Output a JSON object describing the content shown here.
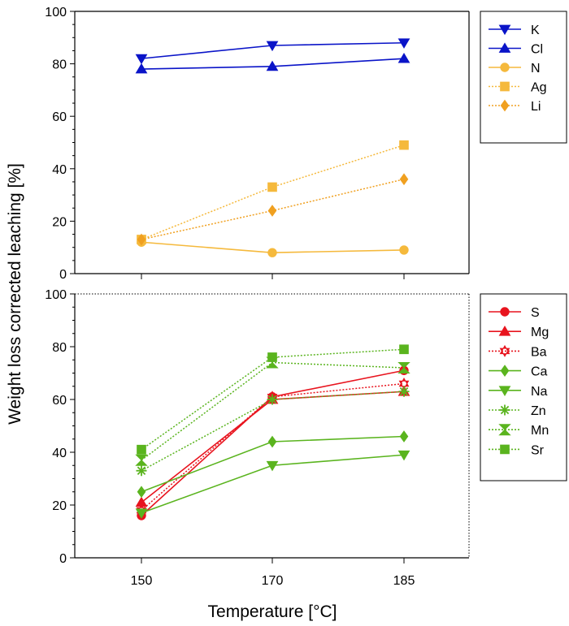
{
  "chart_data": {
    "type": "line",
    "ylabel": "Weight loss corrected leaching [%]",
    "xlabel": "Temperature [°C]",
    "categories": [
      "150",
      "170",
      "185"
    ],
    "panels": [
      {
        "id": "top",
        "ylim": [
          0,
          100
        ],
        "yticks": [
          0,
          20,
          40,
          60,
          80,
          100
        ],
        "legend": "right",
        "series": [
          {
            "name": "K",
            "color": "#0a14c8",
            "marker": "triangle-down",
            "dash": "solid",
            "values": [
              82,
              87,
              88
            ]
          },
          {
            "name": "Cl",
            "color": "#0a14c8",
            "marker": "triangle-up",
            "dash": "solid",
            "values": [
              78,
              79,
              82
            ]
          },
          {
            "name": "N",
            "color": "#f5b93c",
            "marker": "circle",
            "dash": "solid",
            "values": [
              12,
              8,
              9
            ]
          },
          {
            "name": "Ag",
            "color": "#f5b93c",
            "marker": "square",
            "dash": "dotted",
            "values": [
              13,
              33,
              49
            ]
          },
          {
            "name": "Li",
            "color": "#f0a020",
            "marker": "diamond",
            "dash": "dotted",
            "values": [
              13,
              24,
              36
            ]
          }
        ]
      },
      {
        "id": "bottom",
        "ylim": [
          0,
          100
        ],
        "yticks": [
          0,
          20,
          40,
          60,
          80,
          100
        ],
        "legend": "right",
        "series": [
          {
            "name": "S",
            "color": "#e8141e",
            "marker": "circle",
            "dash": "solid",
            "values": [
              16,
              61,
              71
            ]
          },
          {
            "name": "Mg",
            "color": "#e8141e",
            "marker": "triangle-up",
            "dash": "solid",
            "values": [
              21,
              60,
              63
            ]
          },
          {
            "name": "Ba",
            "color": "#e8141e",
            "marker": "star6",
            "dash": "dotted",
            "values": [
              18,
              61,
              66
            ]
          },
          {
            "name": "Ca",
            "color": "#5ab41e",
            "marker": "diamond",
            "dash": "solid",
            "values": [
              25,
              44,
              46
            ]
          },
          {
            "name": "Na",
            "color": "#5ab41e",
            "marker": "triangle-down",
            "dash": "solid",
            "values": [
              17,
              35,
              39
            ]
          },
          {
            "name": "Zn",
            "color": "#5ab41e",
            "marker": "asterisk",
            "dash": "dotted",
            "values": [
              33,
              60,
              63
            ]
          },
          {
            "name": "Mn",
            "color": "#5ab41e",
            "marker": "hourglass",
            "dash": "dotted",
            "values": [
              37,
              74,
              72
            ]
          },
          {
            "name": "Sr",
            "color": "#5ab41e",
            "marker": "square",
            "dash": "dotted",
            "values": [
              41,
              76,
              79
            ]
          }
        ]
      }
    ]
  }
}
